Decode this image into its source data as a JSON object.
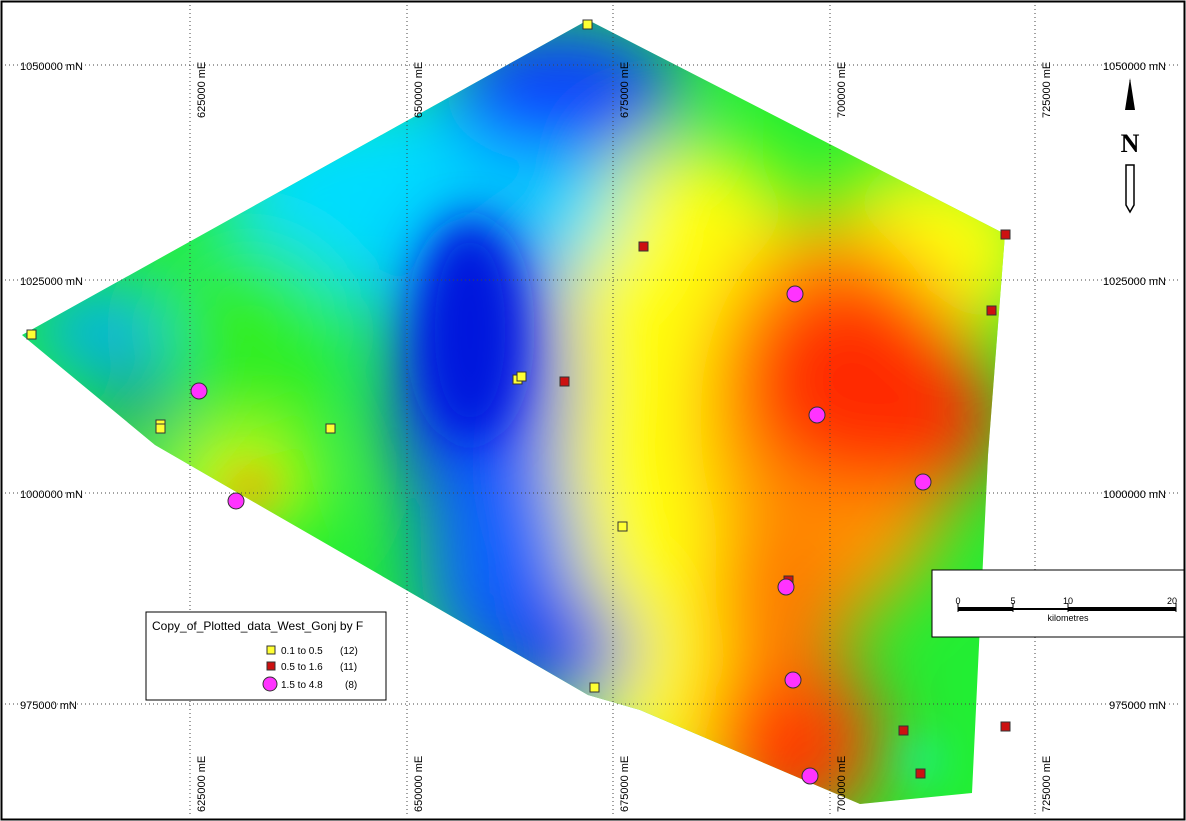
{
  "map": {
    "northings": [
      {
        "label": "1050000 mN"
      },
      {
        "label": "1025000 mN"
      },
      {
        "label": "1000000 mN"
      },
      {
        "label": "975000 mN"
      }
    ],
    "eastings": [
      {
        "label": "625000 mE"
      },
      {
        "label": "650000 mE"
      },
      {
        "label": "675000 mE"
      },
      {
        "label": "700000 mE"
      },
      {
        "label": "725000 mE"
      }
    ],
    "north_arrow": {
      "letter": "N"
    },
    "scale_bar": {
      "ticks": [
        "0",
        "5",
        "10",
        "20"
      ],
      "unit": "kilometres"
    },
    "legend": {
      "title": "Copy_of_Plotted_data_West_Gonj by F",
      "entries": [
        {
          "range": "0.1 to 0.5",
          "count": "(12)",
          "color": "#ffff33",
          "symbol": "small-square"
        },
        {
          "range": "0.5 to 1.6",
          "count": "(11)",
          "color": "#cc1111",
          "symbol": "small-square"
        },
        {
          "range": "1.5 to 4.8",
          "count": "(8)",
          "color": "#ff33ff",
          "symbol": "large-circle"
        }
      ]
    },
    "surface_colors": [
      "#0033dd",
      "#00e6ff",
      "#00e000",
      "#ffff00",
      "#ff2200"
    ]
  }
}
